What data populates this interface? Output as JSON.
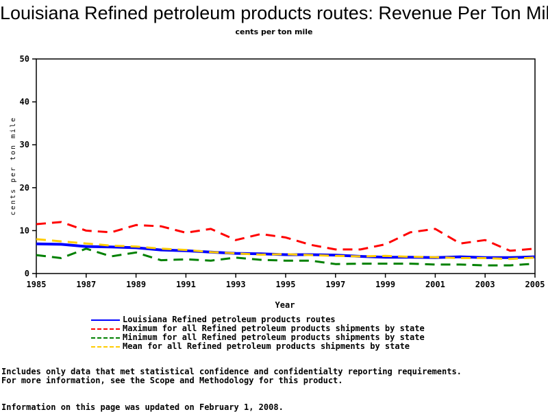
{
  "title": "Louisiana Refined petroleum products routes: Revenue Per Ton Mile",
  "subtitle": "cents per ton mile",
  "chart_data": {
    "type": "line",
    "xlabel": "Year",
    "ylabel": "cents per ton mile",
    "xlim": [
      1985,
      2005
    ],
    "ylim": [
      0,
      50
    ],
    "x_ticks": [
      "1985",
      "1987",
      "1989",
      "1991",
      "1993",
      "1995",
      "1997",
      "1999",
      "2001",
      "2003",
      "2005"
    ],
    "y_ticks": [
      "0",
      "10",
      "20",
      "30",
      "40",
      "50"
    ],
    "grid": false,
    "legend_placement": "bottom",
    "x": [
      1985,
      1986,
      1987,
      1988,
      1989,
      1990,
      1991,
      1992,
      1993,
      1994,
      1995,
      1996,
      1997,
      1998,
      1999,
      2000,
      2001,
      2002,
      2003,
      2004,
      2005
    ],
    "series": [
      {
        "name": "Louisiana Refined petroleum products routes",
        "color": "#0000ff",
        "style": "solid",
        "values": [
          6.9,
          6.8,
          6.3,
          6.2,
          6.0,
          5.5,
          5.3,
          5.0,
          4.7,
          4.6,
          4.4,
          4.4,
          4.3,
          4.0,
          3.8,
          3.8,
          3.7,
          3.9,
          3.7,
          3.7,
          3.9
        ]
      },
      {
        "name": "Maximum for all Refined petroleum products shipments by state",
        "color": "#ff0000",
        "style": "dashed",
        "values": [
          11.5,
          12.0,
          10.0,
          9.6,
          11.3,
          11.0,
          9.5,
          10.4,
          7.8,
          9.2,
          8.4,
          6.7,
          5.6,
          5.6,
          6.8,
          9.6,
          10.4,
          7.0,
          7.8,
          5.3,
          5.8
        ]
      },
      {
        "name": "Minimum for all Refined petroleum products shipments by state",
        "color": "#008000",
        "style": "dashed",
        "values": [
          4.3,
          3.6,
          5.8,
          4.0,
          4.9,
          3.1,
          3.3,
          3.0,
          3.7,
          3.2,
          3.0,
          3.0,
          2.2,
          2.3,
          2.3,
          2.3,
          2.1,
          2.1,
          1.9,
          1.9,
          2.3
        ]
      },
      {
        "name": "Mean for all Refined petroleum products shipments by state",
        "color": "#ffcc00",
        "style": "dashed",
        "values": [
          8.0,
          7.5,
          7.0,
          6.5,
          6.3,
          5.8,
          5.5,
          5.0,
          4.7,
          4.4,
          4.5,
          4.3,
          4.1,
          4.0,
          4.1,
          3.9,
          3.8,
          3.6,
          3.6,
          3.4,
          3.7
        ]
      }
    ]
  },
  "footer": {
    "line1": "Includes only data that met statistical confidence and confidentialty reporting requirements.",
    "line2": "For more information, see the Scope and Methodology for this product.",
    "line3": "Information on this page was updated on February 1, 2008."
  }
}
